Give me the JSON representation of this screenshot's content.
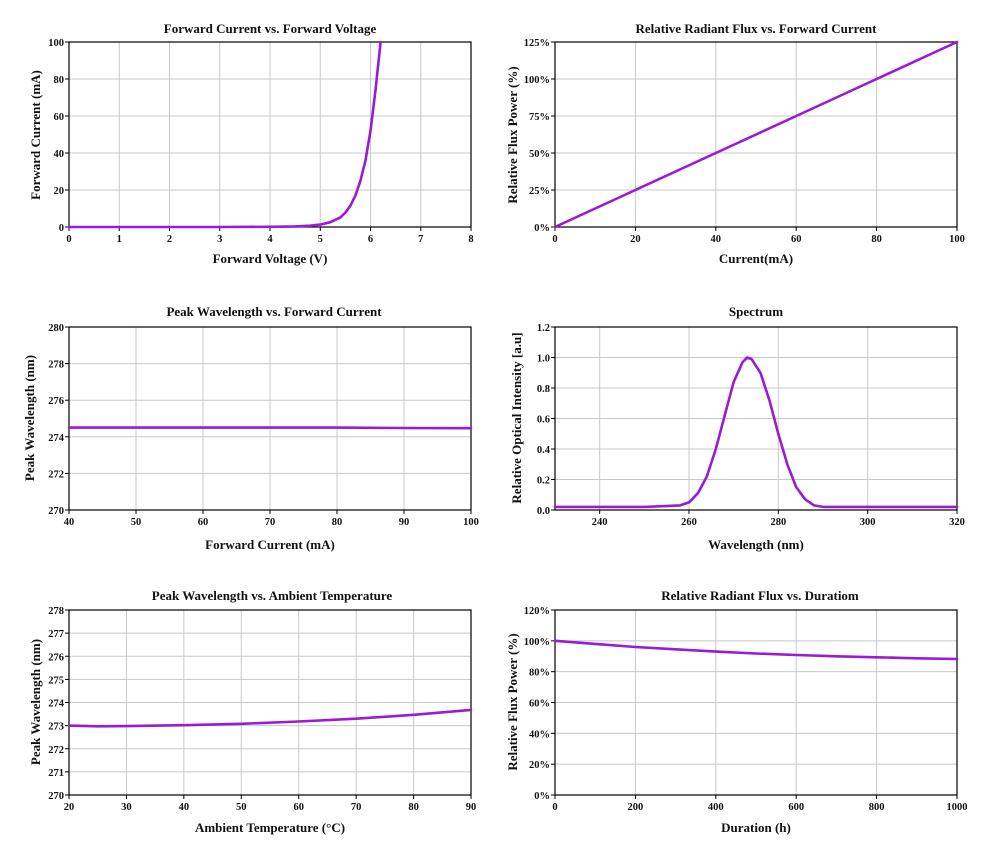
{
  "colors": {
    "curve": "#9a1ad6",
    "grid": "#c8c8c8",
    "frame": "#000000"
  },
  "chart_data": [
    {
      "type": "line",
      "title": "Forward Current vs. Forward Voltage",
      "xlabel": "Forward Voltage (V)",
      "ylabel": "Forward Current (mA)",
      "xlim": [
        0,
        8
      ],
      "ylim": [
        0,
        100
      ],
      "xticks": [
        0,
        1,
        2,
        3,
        4,
        5,
        6,
        7,
        8
      ],
      "yticks": [
        0,
        20,
        40,
        60,
        80,
        100
      ],
      "ytick_format": "plain",
      "grid": true,
      "series": [
        {
          "x": [
            0,
            1,
            2,
            3,
            4,
            4.5,
            4.8,
            5.0,
            5.2,
            5.4,
            5.5,
            5.6,
            5.7,
            5.8,
            5.9,
            6.0,
            6.1,
            6.2
          ],
          "y": [
            0,
            0,
            0,
            0,
            0.1,
            0.3,
            0.7,
            1.3,
            2.6,
            5.2,
            7.8,
            11.5,
            17,
            25,
            36,
            52,
            74,
            100
          ]
        }
      ]
    },
    {
      "type": "line",
      "title": "Relative Radiant Flux vs. Forward Current",
      "xlabel": "Current(mA)",
      "ylabel": "Relative Flux Power (%)",
      "xlim": [
        0,
        100
      ],
      "ylim": [
        0,
        125
      ],
      "xticks": [
        0,
        20,
        40,
        60,
        80,
        100
      ],
      "yticks": [
        0,
        25,
        50,
        75,
        100,
        125
      ],
      "ytick_format": "percent",
      "grid": true,
      "series": [
        {
          "x": [
            0,
            20,
            40,
            60,
            80,
            100
          ],
          "y": [
            0,
            25,
            50,
            75,
            100,
            125
          ]
        }
      ]
    },
    {
      "type": "line",
      "title": "Peak Wavelength vs. Forward Current",
      "xlabel": "Forward Current (mA)",
      "ylabel": "Peak Wavelength (nm)",
      "xlim": [
        40,
        100
      ],
      "ylim": [
        270,
        280
      ],
      "xticks": [
        40,
        50,
        60,
        70,
        80,
        90,
        100
      ],
      "yticks": [
        270,
        272,
        274,
        276,
        278,
        280
      ],
      "ytick_format": "plain",
      "grid": true,
      "series": [
        {
          "x": [
            40,
            60,
            80,
            90,
            100
          ],
          "y": [
            274.5,
            274.5,
            274.5,
            274.48,
            274.47
          ]
        }
      ]
    },
    {
      "type": "line",
      "title": "Spectrum",
      "xlabel": "Wavelength (nm)",
      "ylabel": "Relative Optical Intensity [a.u]",
      "xlim": [
        230,
        320
      ],
      "ylim": [
        0,
        1.2
      ],
      "xticks": [
        240,
        260,
        280,
        300,
        320
      ],
      "yticks": [
        0.0,
        0.2,
        0.4,
        0.6,
        0.8,
        1.0,
        1.2
      ],
      "ytick_format": "fixed1",
      "grid": true,
      "series": [
        {
          "x": [
            230,
            240,
            250,
            258,
            260,
            262,
            264,
            266,
            268,
            270,
            272,
            273,
            274,
            276,
            278,
            280,
            282,
            284,
            286,
            288,
            290,
            300,
            310,
            320
          ],
          "y": [
            0.02,
            0.02,
            0.02,
            0.03,
            0.05,
            0.11,
            0.22,
            0.4,
            0.62,
            0.84,
            0.97,
            1.0,
            0.99,
            0.9,
            0.72,
            0.5,
            0.3,
            0.15,
            0.07,
            0.03,
            0.02,
            0.02,
            0.02,
            0.02
          ]
        }
      ]
    },
    {
      "type": "line",
      "title": "Peak Wavelength vs. Ambient Temperature",
      "xlabel": "Ambient Temperature (°C)",
      "ylabel": "Peak Wavelength (nm)",
      "xlim": [
        20,
        90
      ],
      "ylim": [
        270,
        278
      ],
      "xticks": [
        20,
        30,
        40,
        50,
        60,
        70,
        80,
        90
      ],
      "yticks": [
        270,
        271,
        272,
        273,
        274,
        275,
        276,
        277,
        278
      ],
      "ytick_format": "plain",
      "grid": true,
      "series": [
        {
          "x": [
            20,
            25,
            30,
            40,
            50,
            60,
            70,
            80,
            90
          ],
          "y": [
            273.0,
            272.97,
            272.98,
            273.02,
            273.08,
            273.18,
            273.3,
            273.47,
            273.68
          ]
        }
      ]
    },
    {
      "type": "line",
      "title": "Relative Radiant Flux vs. Duratiom",
      "xlabel": "Duration (h)",
      "ylabel": "Relative Flux Power (%)",
      "xlim": [
        0,
        1000
      ],
      "ylim": [
        0,
        120
      ],
      "xticks": [
        0,
        200,
        400,
        600,
        800,
        1000
      ],
      "yticks": [
        0,
        20,
        40,
        60,
        80,
        100,
        120
      ],
      "ytick_format": "percent",
      "grid": true,
      "series": [
        {
          "x": [
            0,
            100,
            200,
            300,
            400,
            500,
            600,
            700,
            800,
            900,
            1000
          ],
          "y": [
            100,
            98,
            96,
            94.5,
            93,
            91.8,
            90.8,
            90,
            89.3,
            88.7,
            88.2
          ]
        }
      ]
    }
  ]
}
